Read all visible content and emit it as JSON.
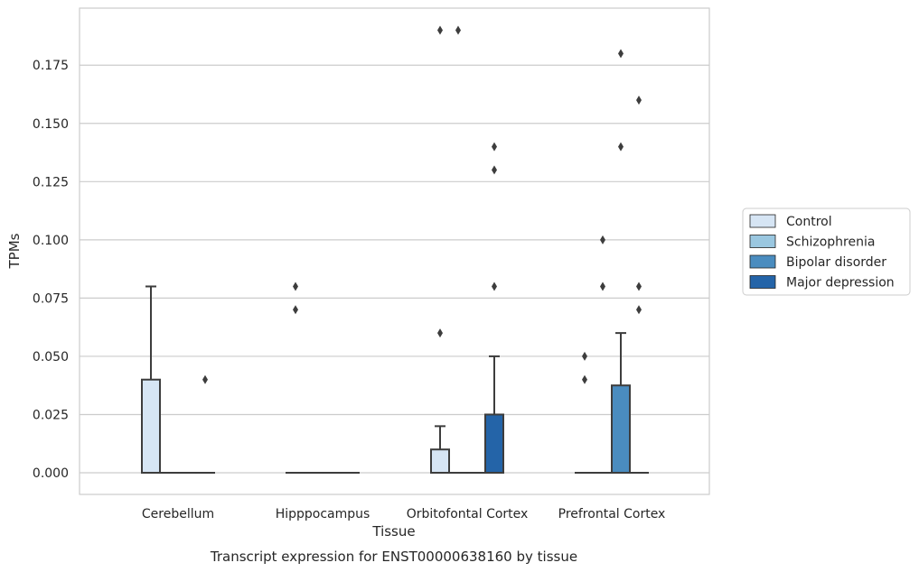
{
  "chart_data": {
    "type": "box",
    "title": "Transcript expression for ENST00000638160 by tissue",
    "xlabel": "Tissue",
    "ylabel": "TPMs",
    "ylim": [
      -0.0095,
      0.1995
    ],
    "yticks": [
      0.0,
      0.025,
      0.05,
      0.075,
      0.1,
      0.125,
      0.15,
      0.175
    ],
    "ytick_labels": [
      "0.000",
      "0.025",
      "0.050",
      "0.075",
      "0.100",
      "0.125",
      "0.150",
      "0.175"
    ],
    "grid": "horizontal",
    "legend_position": "right",
    "categories": [
      "Cerebellum",
      "Hipppocampus",
      "Orbitofontal Cortex",
      "Prefrontal Cortex"
    ],
    "series": [
      {
        "name": "Control",
        "color": "#d6e5f4",
        "boxes": [
          {
            "q1": 0,
            "median": 0,
            "q3": 0.04,
            "whisker_low": 0,
            "whisker_high": 0.08,
            "outliers": []
          },
          {
            "q1": 0,
            "median": 0,
            "q3": 0,
            "whisker_low": 0,
            "whisker_high": 0,
            "outliers": [
              0.07,
              0.08
            ]
          },
          {
            "q1": 0,
            "median": 0,
            "q3": 0.01,
            "whisker_low": 0,
            "whisker_high": 0.02,
            "outliers": [
              0.06,
              0.19
            ]
          },
          {
            "q1": 0,
            "median": 0,
            "q3": 0,
            "whisker_low": 0,
            "whisker_high": 0,
            "outliers": [
              0.04,
              0.05
            ]
          }
        ]
      },
      {
        "name": "Schizophrenia",
        "color": "#9ac7e0",
        "boxes": [
          {
            "q1": 0,
            "median": 0,
            "q3": 0,
            "whisker_low": 0,
            "whisker_high": 0,
            "outliers": []
          },
          {
            "q1": 0,
            "median": 0,
            "q3": 0,
            "whisker_low": 0,
            "whisker_high": 0,
            "outliers": []
          },
          {
            "q1": 0,
            "median": 0,
            "q3": 0,
            "whisker_low": 0,
            "whisker_high": 0,
            "outliers": [
              0.19
            ]
          },
          {
            "q1": 0,
            "median": 0,
            "q3": 0,
            "whisker_low": 0,
            "whisker_high": 0,
            "outliers": [
              0.08,
              0.1
            ]
          }
        ]
      },
      {
        "name": "Bipolar disorder",
        "color": "#4a8cbf",
        "boxes": [
          {
            "q1": 0,
            "median": 0,
            "q3": 0,
            "whisker_low": 0,
            "whisker_high": 0,
            "outliers": []
          },
          {
            "q1": 0,
            "median": 0,
            "q3": 0,
            "whisker_low": 0,
            "whisker_high": 0,
            "outliers": []
          },
          {
            "q1": 0,
            "median": 0,
            "q3": 0,
            "whisker_low": 0,
            "whisker_high": 0,
            "outliers": []
          },
          {
            "q1": 0,
            "median": 0,
            "q3": 0.0375,
            "whisker_low": 0,
            "whisker_high": 0.06,
            "outliers": [
              0.14,
              0.18
            ]
          }
        ]
      },
      {
        "name": "Major depression",
        "color": "#2464a8",
        "boxes": [
          {
            "q1": 0,
            "median": 0,
            "q3": 0,
            "whisker_low": 0,
            "whisker_high": 0,
            "outliers": [
              0.04
            ]
          },
          {
            "q1": 0,
            "median": 0,
            "q3": 0,
            "whisker_low": 0,
            "whisker_high": 0,
            "outliers": []
          },
          {
            "q1": 0,
            "median": 0,
            "q3": 0.025,
            "whisker_low": 0,
            "whisker_high": 0.05,
            "outliers": [
              0.08,
              0.13,
              0.14
            ]
          },
          {
            "q1": 0,
            "median": 0,
            "q3": 0,
            "whisker_low": 0,
            "whisker_high": 0,
            "outliers": [
              0.07,
              0.08,
              0.16
            ]
          }
        ]
      }
    ]
  }
}
